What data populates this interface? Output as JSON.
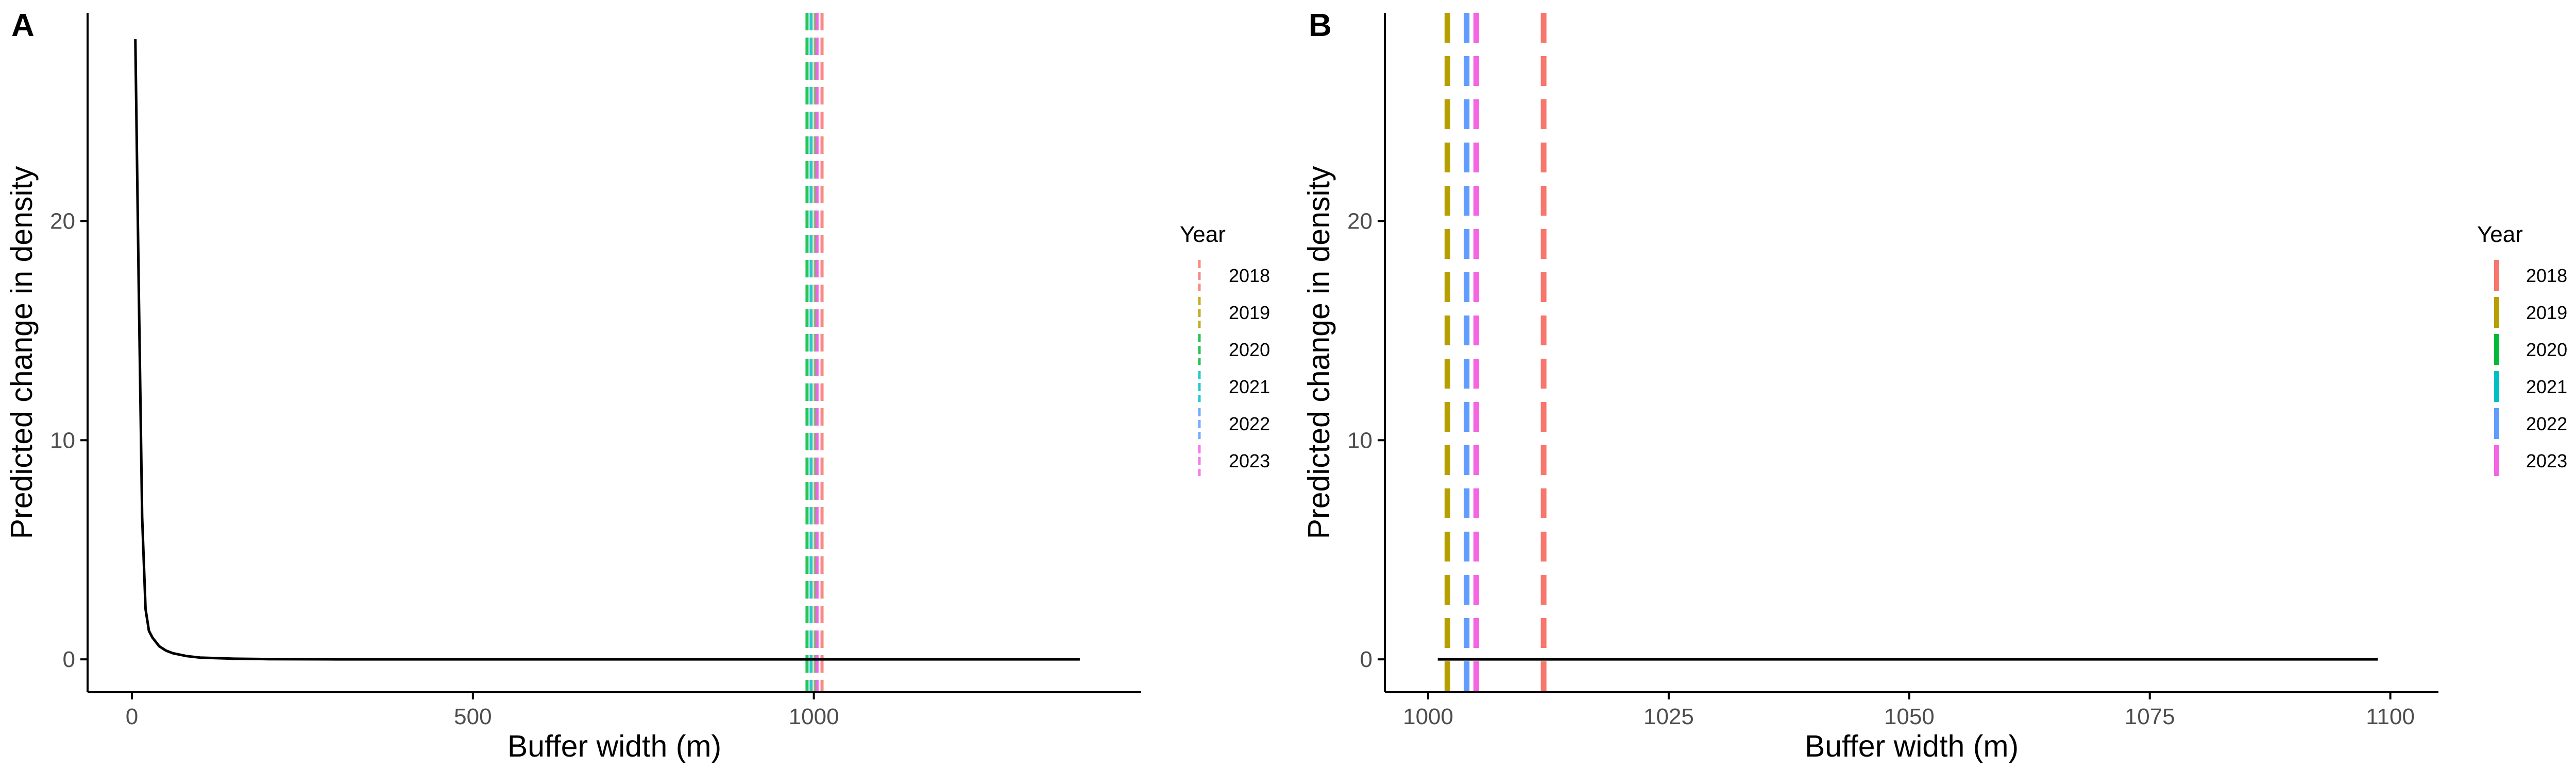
{
  "colors": {
    "2018": "#F8766D",
    "2019": "#B79F00",
    "2020": "#00BA38",
    "2021": "#00BFC4",
    "2022": "#619CFF",
    "2023": "#F564E3",
    "curve": "#000000",
    "axis": "#000000",
    "tick_text": "#4d4d4d"
  },
  "chart_data": [
    {
      "panel": "A",
      "type": "line",
      "xlabel": "Buffer width (m)",
      "ylabel": "Predicted change in density",
      "xlim": [
        -65,
        1480
      ],
      "ylim": [
        -1.5,
        29.5
      ],
      "x_ticks": [
        0,
        500,
        1000
      ],
      "y_ticks": [
        0,
        10,
        20
      ],
      "grid": false,
      "legend": {
        "title": "Year",
        "position": "right",
        "entries": [
          "2018",
          "2019",
          "2020",
          "2021",
          "2022",
          "2023"
        ]
      },
      "series": [
        {
          "x": [
            5,
            10,
            15,
            20,
            25,
            30,
            40,
            50,
            60,
            80,
            100,
            150,
            200,
            300,
            500,
            800,
            1000,
            1200,
            1390
          ],
          "y": [
            28.3,
            17.0,
            6.5,
            2.3,
            1.3,
            1.0,
            0.6,
            0.4,
            0.28,
            0.15,
            0.08,
            0.03,
            0.01,
            0.0,
            0.0,
            0.0,
            0.0,
            0.0,
            0.0
          ]
        }
      ],
      "vlines": [
        {
          "year": "2018",
          "x": 1012
        },
        {
          "year": "2019",
          "x": 1002
        },
        {
          "year": "2020",
          "x": 990
        },
        {
          "year": "2021",
          "x": 996
        },
        {
          "year": "2022",
          "x": 1004
        },
        {
          "year": "2023",
          "x": 1005
        }
      ],
      "vline_style": "thin-dashed-semitransparent"
    },
    {
      "panel": "B",
      "type": "line",
      "xlabel": "Buffer width (m)",
      "ylabel": "Predicted change in density",
      "xlim": [
        995.5,
        1105
      ],
      "ylim": [
        -1.5,
        29.5
      ],
      "x_ticks": [
        1000,
        1025,
        1050,
        1075,
        1100
      ],
      "y_ticks": [
        0,
        10,
        20
      ],
      "grid": false,
      "legend": {
        "title": "Year",
        "position": "right",
        "entries": [
          "2018",
          "2019",
          "2020",
          "2021",
          "2022",
          "2023"
        ]
      },
      "series": [
        {
          "x": [
            1001,
            1098.7
          ],
          "y": [
            0,
            0
          ]
        }
      ],
      "vlines": [
        {
          "year": "2018",
          "x": 1012
        },
        {
          "year": "2019",
          "x": 1002
        },
        {
          "year": "2022",
          "x": 1004
        },
        {
          "year": "2023",
          "x": 1005
        }
      ],
      "vline_style": "thick-dashed"
    }
  ]
}
